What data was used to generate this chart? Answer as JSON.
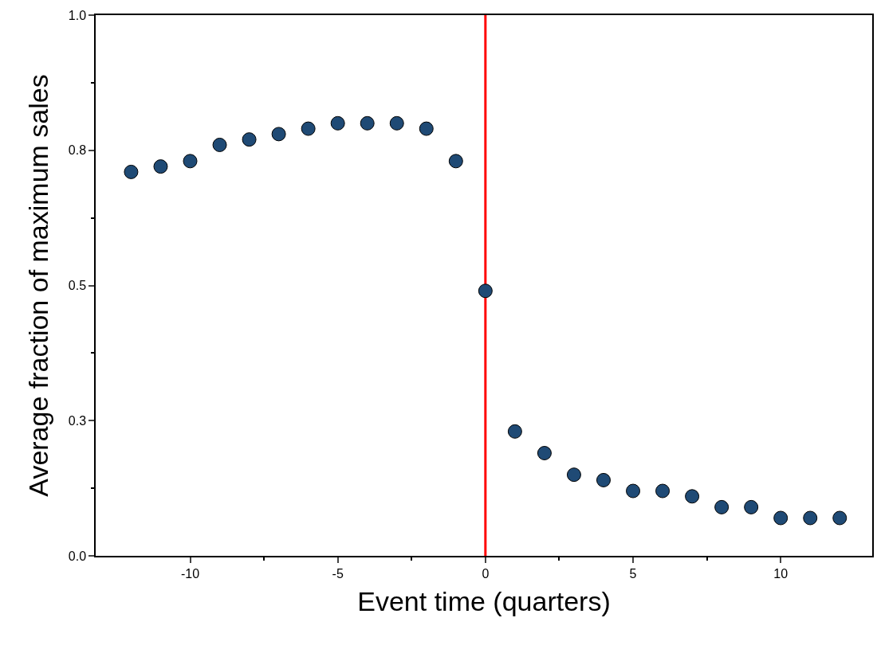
{
  "chart_data": {
    "type": "scatter",
    "xlabel": "Event time (quarters)",
    "ylabel": "Average fraction of maximum sales",
    "x": [
      -12,
      -11,
      -10,
      -9,
      -8,
      -7,
      -6,
      -5,
      -4,
      -3,
      -2,
      -1,
      0,
      1,
      2,
      3,
      4,
      5,
      6,
      7,
      8,
      9,
      10,
      11,
      12
    ],
    "series": [
      {
        "color": "#1f4a75",
        "values": [
          0.71,
          0.72,
          0.73,
          0.76,
          0.77,
          0.78,
          0.79,
          0.8,
          0.8,
          0.8,
          0.79,
          0.73,
          0.49,
          0.23,
          0.19,
          0.15,
          0.14,
          0.12,
          0.12,
          0.11,
          0.09,
          0.09,
          0.07,
          0.07,
          0.07
        ]
      }
    ],
    "marker": "circle",
    "grid": false,
    "legend": false,
    "xlim": [
      -13.2,
      13.1
    ],
    "xticks": [
      -10,
      {
        "value": -7.5,
        "label": null
      },
      -5,
      {
        "value": -2.5,
        "label": null
      },
      0,
      {
        "value": 2.5,
        "label": null
      },
      5,
      {
        "value": 7.5,
        "label": null
      },
      10
    ],
    "ylim": [
      0,
      1
    ],
    "yticks": [
      {
        "value": 0,
        "label": "0.0"
      },
      {
        "value": 0.125,
        "label": null
      },
      {
        "value": 0.25,
        "label": "0.3"
      },
      {
        "value": 0.375,
        "label": null
      },
      {
        "value": 0.5,
        "label": "0.5"
      },
      {
        "value": 0.625,
        "label": null
      },
      {
        "value": 0.75,
        "label": "0.8"
      },
      {
        "value": 0.875,
        "label": null
      },
      {
        "value": 1,
        "label": "1.0"
      }
    ],
    "ref_lines": [
      {
        "axis": "x",
        "value": 0,
        "color": "#ff0000",
        "line_style": "solid"
      }
    ]
  }
}
